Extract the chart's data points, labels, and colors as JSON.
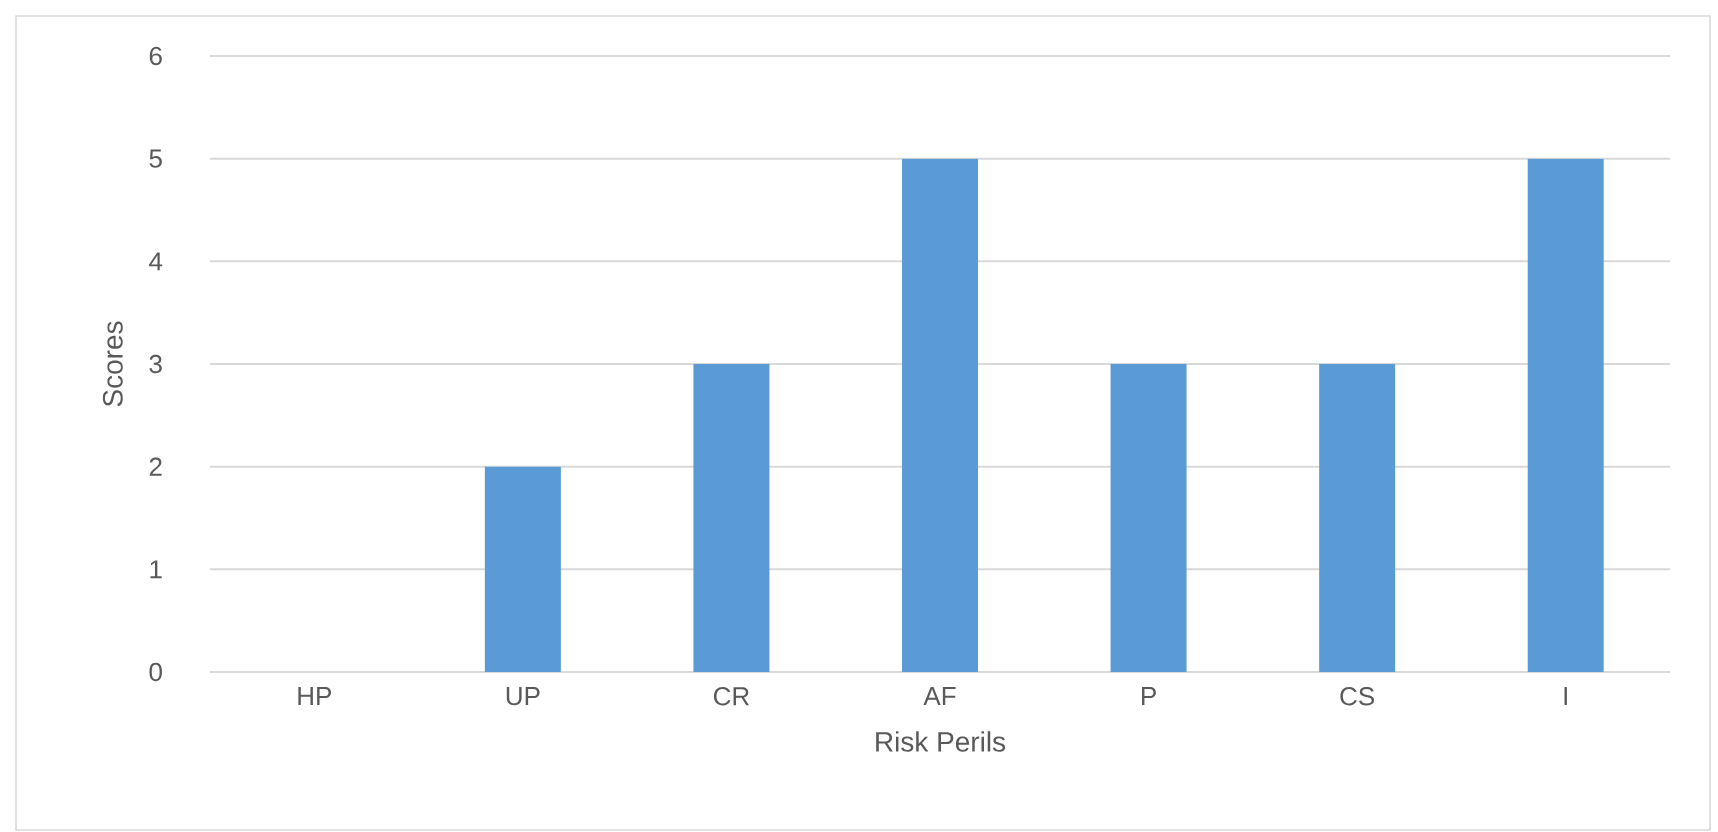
{
  "chart_data": {
    "type": "bar",
    "xlabel": "Risk Perils",
    "ylabel": "Scores",
    "categories": [
      "HP",
      "UP",
      "CR",
      "AF",
      "P",
      "CS",
      "I"
    ],
    "values": [
      0,
      2,
      3,
      5,
      3,
      3,
      5
    ],
    "color": "#5b9bd5",
    "ylim": [
      0,
      6
    ],
    "yticks": [
      0,
      1,
      2,
      3,
      4,
      5,
      6
    ],
    "grid": "y"
  }
}
